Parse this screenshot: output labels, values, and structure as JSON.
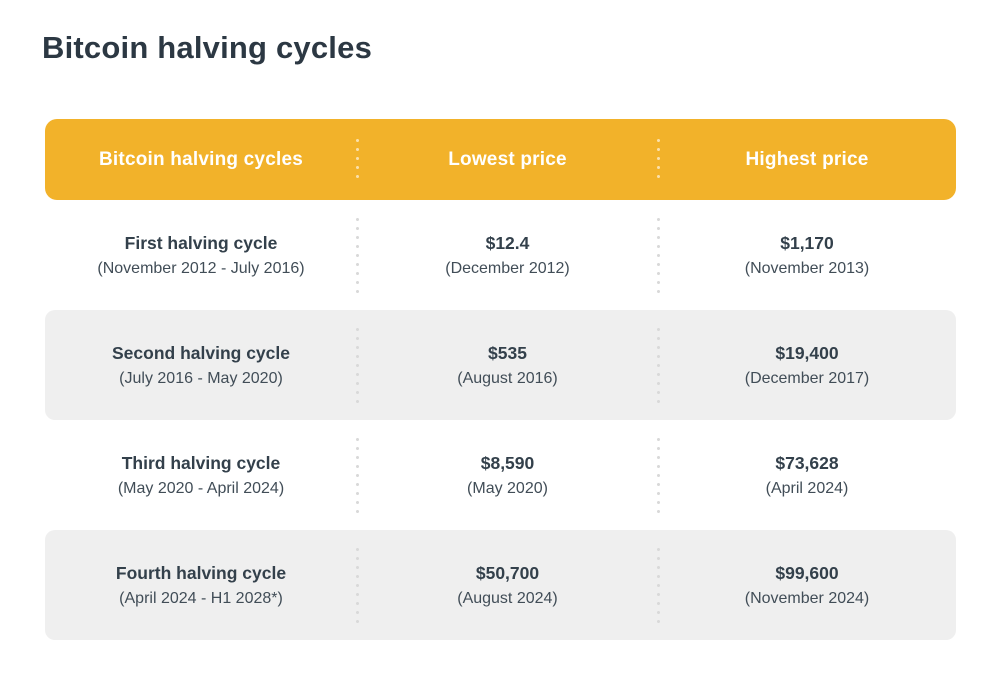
{
  "page_title": "Bitcoin halving cycles",
  "colors": {
    "header_bg": "#f2b22a",
    "header_text": "#ffffff",
    "row_alt_bg": "#efefef",
    "text_primary": "#33404b",
    "text_secondary": "#414d57",
    "divider_dot": "#d9d9d9"
  },
  "table": {
    "columns": [
      "Bitcoin halving cycles",
      "Lowest price",
      "Highest price"
    ],
    "rows": [
      {
        "cycle": "First halving cycle",
        "period": "(November 2012 - July 2016)",
        "lowest_price": "$12.4",
        "lowest_date": "(December 2012)",
        "highest_price": "$1,170",
        "highest_date": "(November 2013)"
      },
      {
        "cycle": "Second halving cycle",
        "period": "(July 2016 - May 2020)",
        "lowest_price": "$535",
        "lowest_date": "(August 2016)",
        "highest_price": "$19,400",
        "highest_date": "(December 2017)"
      },
      {
        "cycle": "Third halving cycle",
        "period": "(May 2020 - April 2024)",
        "lowest_price": "$8,590",
        "lowest_date": "(May 2020)",
        "highest_price": "$73,628",
        "highest_date": "(April 2024)"
      },
      {
        "cycle": "Fourth halving cycle",
        "period": "(April 2024 - H1 2028*)",
        "lowest_price": "$50,700",
        "lowest_date": "(August 2024)",
        "highest_price": "$99,600",
        "highest_date": "(November 2024)"
      }
    ]
  },
  "chart_data": {
    "type": "table",
    "title": "Bitcoin halving cycles",
    "columns": [
      "Bitcoin halving cycles",
      "Lowest price",
      "Highest price"
    ],
    "rows": [
      [
        "First halving cycle (November 2012 - July 2016)",
        "$12.4 (December 2012)",
        "$1,170 (November 2013)"
      ],
      [
        "Second halving cycle (July 2016 - May 2020)",
        "$535 (August 2016)",
        "$19,400 (December 2017)"
      ],
      [
        "Third halving cycle (May 2020 - April 2024)",
        "$8,590 (May 2020)",
        "$73,628 (April 2024)"
      ],
      [
        "Fourth halving cycle (April 2024 - H1 2028*)",
        "$50,700 (August 2024)",
        "$99,600 (November 2024)"
      ]
    ],
    "lowest_prices_usd": [
      12.4,
      535,
      8590,
      50700
    ],
    "highest_prices_usd": [
      1170,
      19400,
      73628,
      99600
    ]
  }
}
